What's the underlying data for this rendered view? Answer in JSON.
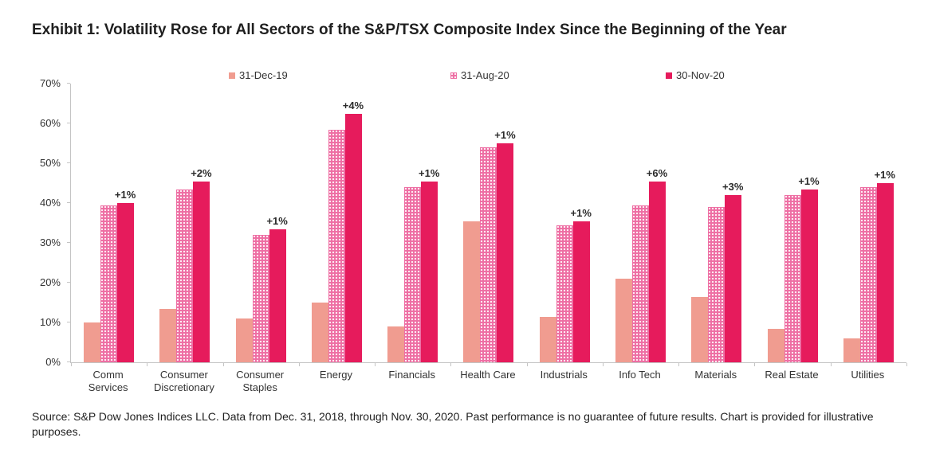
{
  "title": "Exhibit 1: Volatility Rose for All Sectors of the S&P/TSX Composite Index Since the Beginning of the Year",
  "source_note": "Source: S&P Dow Jones Indices LLC. Data from Dec. 31, 2018, through Nov. 30, 2020. Past performance is no guarantee of future results. Chart is provided for illustrative purposes.",
  "colors": {
    "series_dec": "#F09C90",
    "series_aug": "#EE6FA4",
    "series_nov": "#E61B5C",
    "axis": "#C4C4C4",
    "text": "#333333"
  },
  "chart_data": {
    "type": "bar",
    "title": "Exhibit 1: Volatility Rose for All Sectors of the S&P/TSX Composite Index Since the Beginning of the Year",
    "categories": [
      "Comm Services",
      "Consumer Discretionary",
      "Consumer Staples",
      "Energy",
      "Financials",
      "Health Care",
      "Industrials",
      "Info Tech",
      "Materials",
      "Real Estate",
      "Utilities"
    ],
    "series": [
      {
        "name": "31-Dec-19",
        "key": "dec",
        "values": [
          10,
          13.5,
          11,
          15,
          9,
          35.5,
          11.5,
          21,
          16.5,
          8.5,
          6
        ]
      },
      {
        "name": "31-Aug-20",
        "key": "aug",
        "values": [
          39.5,
          43.5,
          32,
          58.5,
          44,
          54,
          34.5,
          39.5,
          39,
          42,
          44
        ]
      },
      {
        "name": "30-Nov-20",
        "key": "nov",
        "values": [
          40,
          45.5,
          33.5,
          62.5,
          45.5,
          55,
          35.5,
          45.5,
          42,
          43.5,
          45
        ]
      }
    ],
    "annotations": [
      "+1%",
      "+2%",
      "+1%",
      "+4%",
      "+1%",
      "+1%",
      "+1%",
      "+6%",
      "+3%",
      "+1%",
      "+1%"
    ],
    "yticks": [
      "0%",
      "10%",
      "20%",
      "30%",
      "40%",
      "50%",
      "60%",
      "70%"
    ],
    "ylim": [
      0,
      70
    ],
    "xlabel": "",
    "ylabel": "",
    "grid": false,
    "legend_position": "top"
  }
}
